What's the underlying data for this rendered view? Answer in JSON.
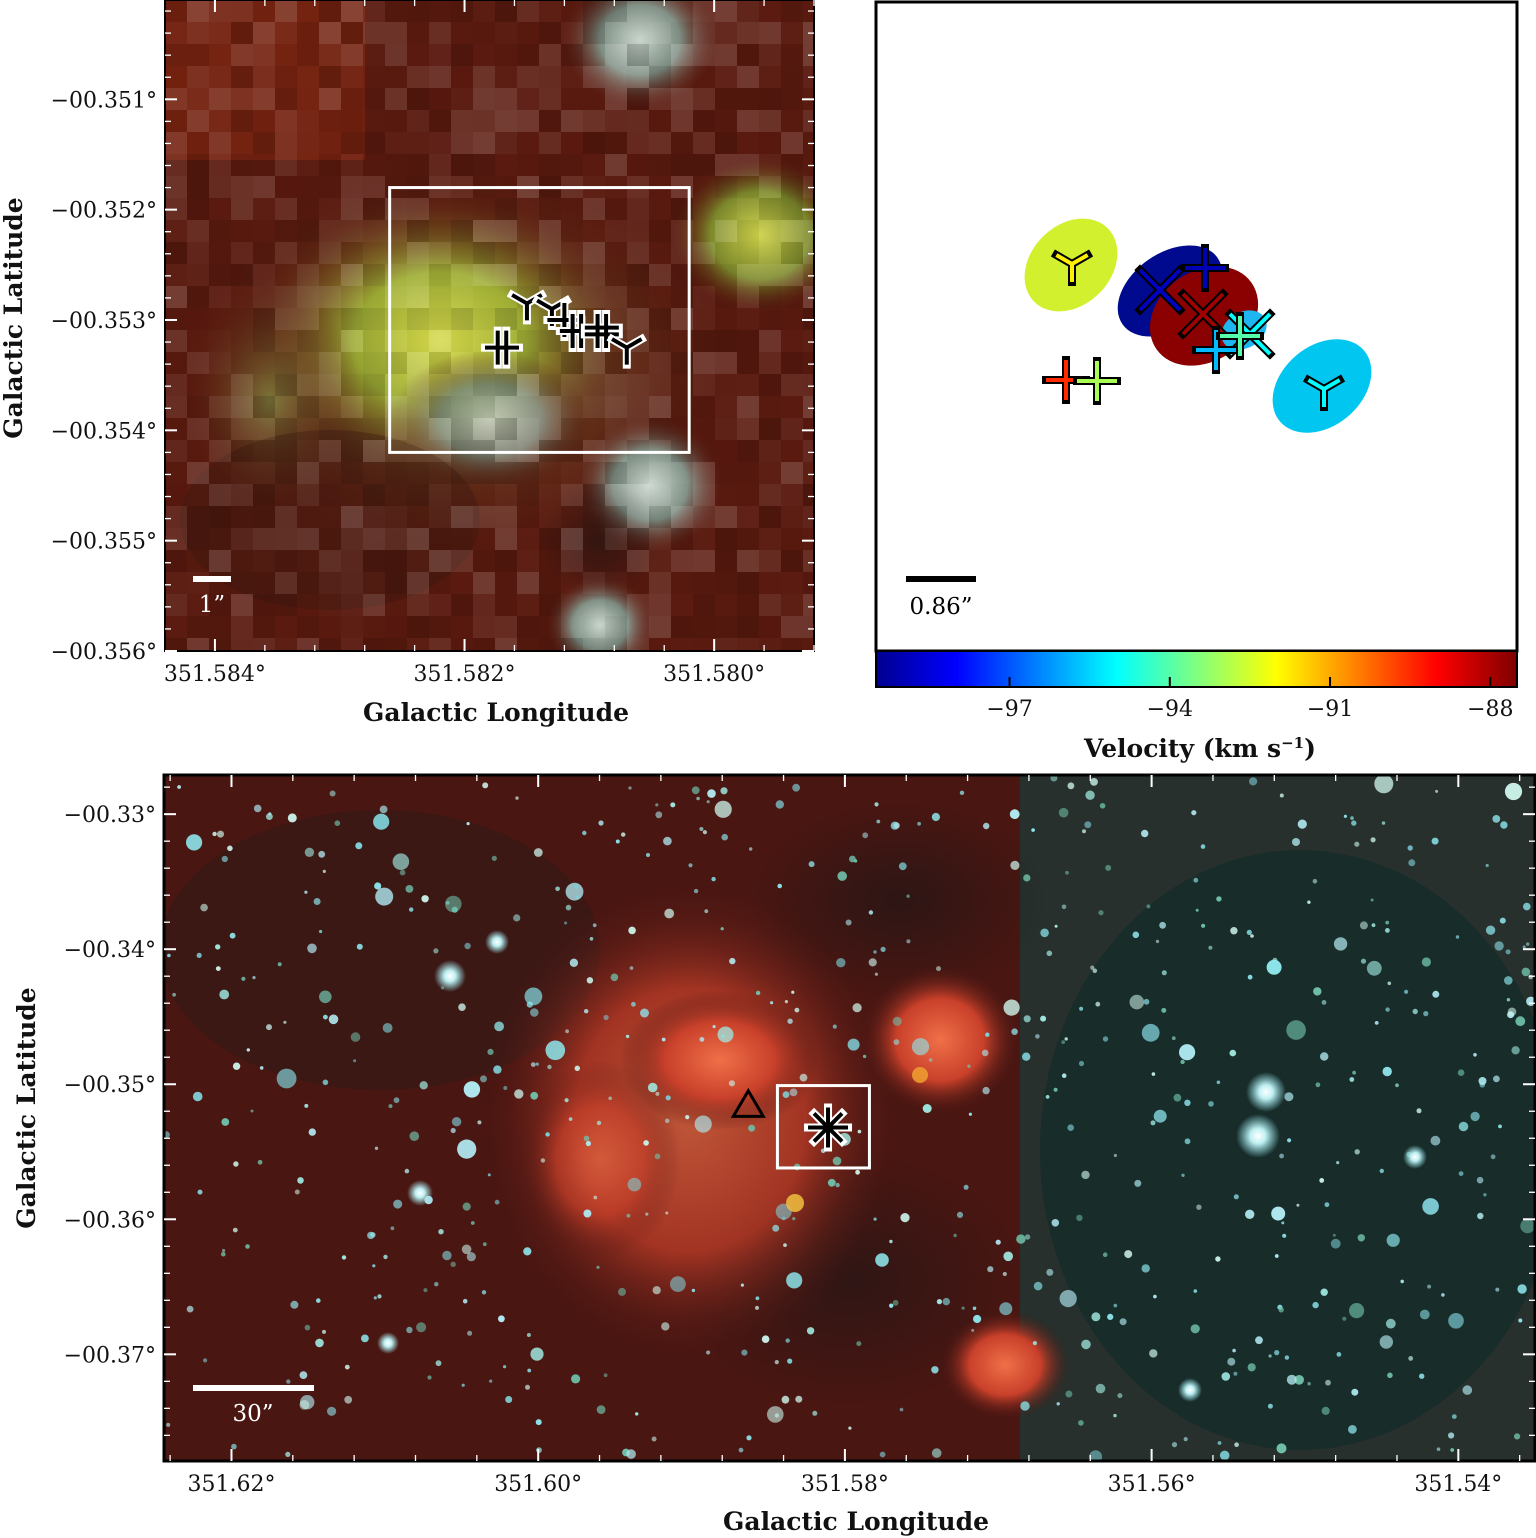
{
  "panels": {
    "top_left": {
      "xlabel": "Galactic Longitude",
      "ylabel": "Galactic Latitude",
      "scalebar": "1”",
      "colors": {
        "bg": "#5a1a0f",
        "core": "#c7cf3a",
        "star": "#b8c8bc"
      }
    },
    "top_right": {
      "scalebar": "0.86”",
      "colorbar_label": "Velocity (km s",
      "colorbar_sup": "−1",
      "colorbar_close": ")"
    },
    "bottom": {
      "xlabel": "Galactic Longitude",
      "ylabel": "Galactic Latitude",
      "scalebar": "30”",
      "colors": {
        "bg": "#4a1612",
        "nebula": "#e0502d",
        "star": "#8ee6ec"
      }
    }
  },
  "chart_data": [
    {
      "type": "scatter",
      "panel": "top-left zoom image",
      "xlim": [
        351.5844,
        351.5792
      ],
      "ylim": [
        -0.356,
        -0.3501
      ],
      "xticks": [
        351.584,
        351.582,
        351.58
      ],
      "xtick_labels": [
        "351.584°",
        "351.582°",
        "351.580°"
      ],
      "yticks": [
        -0.351,
        -0.352,
        -0.353,
        -0.354,
        -0.355,
        -0.356
      ],
      "ytick_labels": [
        "−00.351°",
        "−00.352°",
        "−00.353°",
        "−00.354°",
        "−00.355°",
        "−00.356°"
      ],
      "box": {
        "l1": 351.5826,
        "l2": 351.5802,
        "b1": -0.3518,
        "b2": -0.3542
      },
      "markers": [
        {
          "l": 351.5817,
          "b": -0.35325,
          "symbol": "double-plus"
        },
        {
          "l": 351.5815,
          "b": -0.35285,
          "symbol": "tri"
        },
        {
          "l": 351.5813,
          "b": -0.3529,
          "symbol": "tri"
        },
        {
          "l": 351.5812,
          "b": -0.353,
          "symbol": "plus"
        },
        {
          "l": 351.5811,
          "b": -0.3531,
          "symbol": "double-plus"
        },
        {
          "l": 351.5809,
          "b": -0.3531,
          "symbol": "hash"
        },
        {
          "l": 351.5807,
          "b": -0.35325,
          "symbol": "tri"
        }
      ]
    },
    {
      "type": "scatter",
      "panel": "top-right velocity map",
      "colorbar": {
        "min": -99.5,
        "max": -87.5,
        "ticks": [
          -97,
          -94,
          -91,
          -88
        ],
        "tick_labels": [
          "−97",
          "−94",
          "−91",
          "−88"
        ]
      },
      "sources": [
        {
          "symbol": "tri",
          "velocity": -91.8
        },
        {
          "symbol": "x",
          "velocity": -98.8
        },
        {
          "symbol": "plus",
          "velocity": -99.0
        },
        {
          "symbol": "x",
          "velocity": -87.9
        },
        {
          "symbol": "x",
          "velocity": -95.0
        },
        {
          "symbol": "plus",
          "velocity": -95.8
        },
        {
          "symbol": "plus",
          "velocity": -94.0
        },
        {
          "symbol": "tri",
          "velocity": -95.0
        },
        {
          "symbol": "plus",
          "velocity": -89.5
        },
        {
          "symbol": "plus",
          "velocity": -93.0
        }
      ]
    },
    {
      "type": "scatter",
      "panel": "bottom wide-field image",
      "xlim": [
        351.6244,
        351.535
      ],
      "ylim": [
        -0.3779,
        -0.3271
      ],
      "xticks": [
        351.62,
        351.6,
        351.58,
        351.56,
        351.54
      ],
      "xtick_labels": [
        "351.62°",
        "351.60°",
        "351.58°",
        "351.56°",
        "351.54°"
      ],
      "yticks": [
        -0.33,
        -0.34,
        -0.35,
        -0.36,
        -0.37
      ],
      "ytick_labels": [
        "−00.33°",
        "−00.34°",
        "−00.35°",
        "−00.36°",
        "−00.37°"
      ],
      "box": {
        "l1": 351.5844,
        "l2": 351.5784,
        "b1": -0.3501,
        "b2": -0.3562
      },
      "markers": [
        {
          "l": 351.5863,
          "b": -0.3516,
          "symbol": "triangle"
        },
        {
          "l": 351.5811,
          "b": -0.3532,
          "symbol": "asterisk"
        }
      ]
    }
  ]
}
